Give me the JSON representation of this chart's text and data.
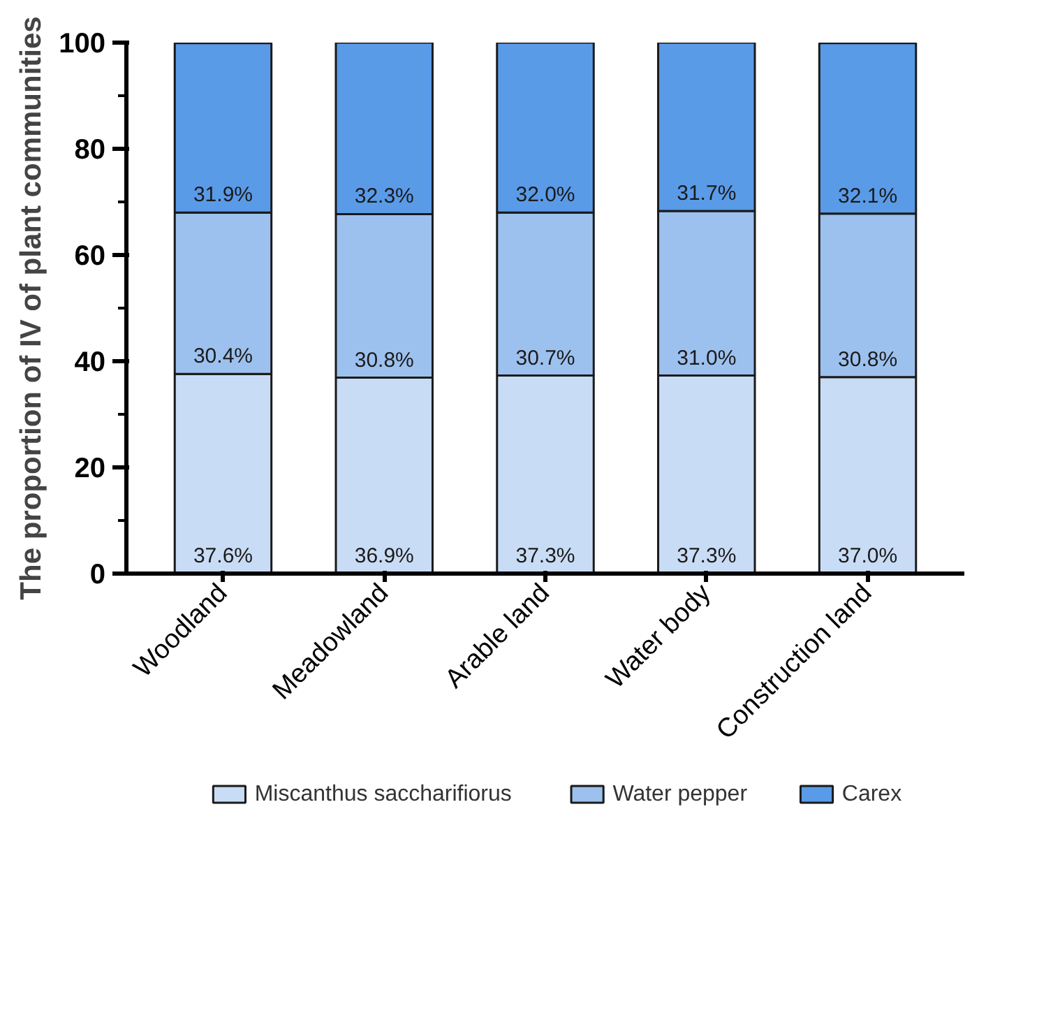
{
  "chart_data": {
    "type": "bar",
    "stacked": true,
    "ylabel": "The proportion of IV of plant communities",
    "categories": [
      "Woodland",
      "Meadowland",
      "Arable land",
      "Water body",
      "Construction land"
    ],
    "series": [
      {
        "name": "Miscanthus saccharifiorus",
        "color": "#c9dcf5",
        "values": [
          37.6,
          36.9,
          37.3,
          37.3,
          37.0
        ],
        "value_labels": [
          "37.6%",
          "36.9%",
          "37.3%",
          "37.3%",
          "37.0%"
        ]
      },
      {
        "name": "Water pepper",
        "color": "#9dc1ee",
        "values": [
          30.4,
          30.8,
          30.7,
          31.0,
          30.8
        ],
        "value_labels": [
          "30.4%",
          "30.8%",
          "30.7%",
          "31.0%",
          "30.8%"
        ]
      },
      {
        "name": "Carex",
        "color": "#5a9be8",
        "values": [
          31.9,
          32.3,
          32.0,
          31.7,
          32.1
        ],
        "value_labels": [
          "31.9%",
          "32.3%",
          "32.0%",
          "31.7%",
          "32.1%"
        ]
      }
    ],
    "ylim": [
      0,
      100
    ],
    "yticks": [
      0,
      {
        "value": 10,
        "label": null
      },
      20,
      {
        "value": 30,
        "label": null
      },
      40,
      {
        "value": 50,
        "label": null
      },
      60,
      {
        "value": 70,
        "label": null
      },
      80,
      {
        "value": 90,
        "label": null
      },
      100
    ],
    "grid": false,
    "legend": "bottom"
  }
}
